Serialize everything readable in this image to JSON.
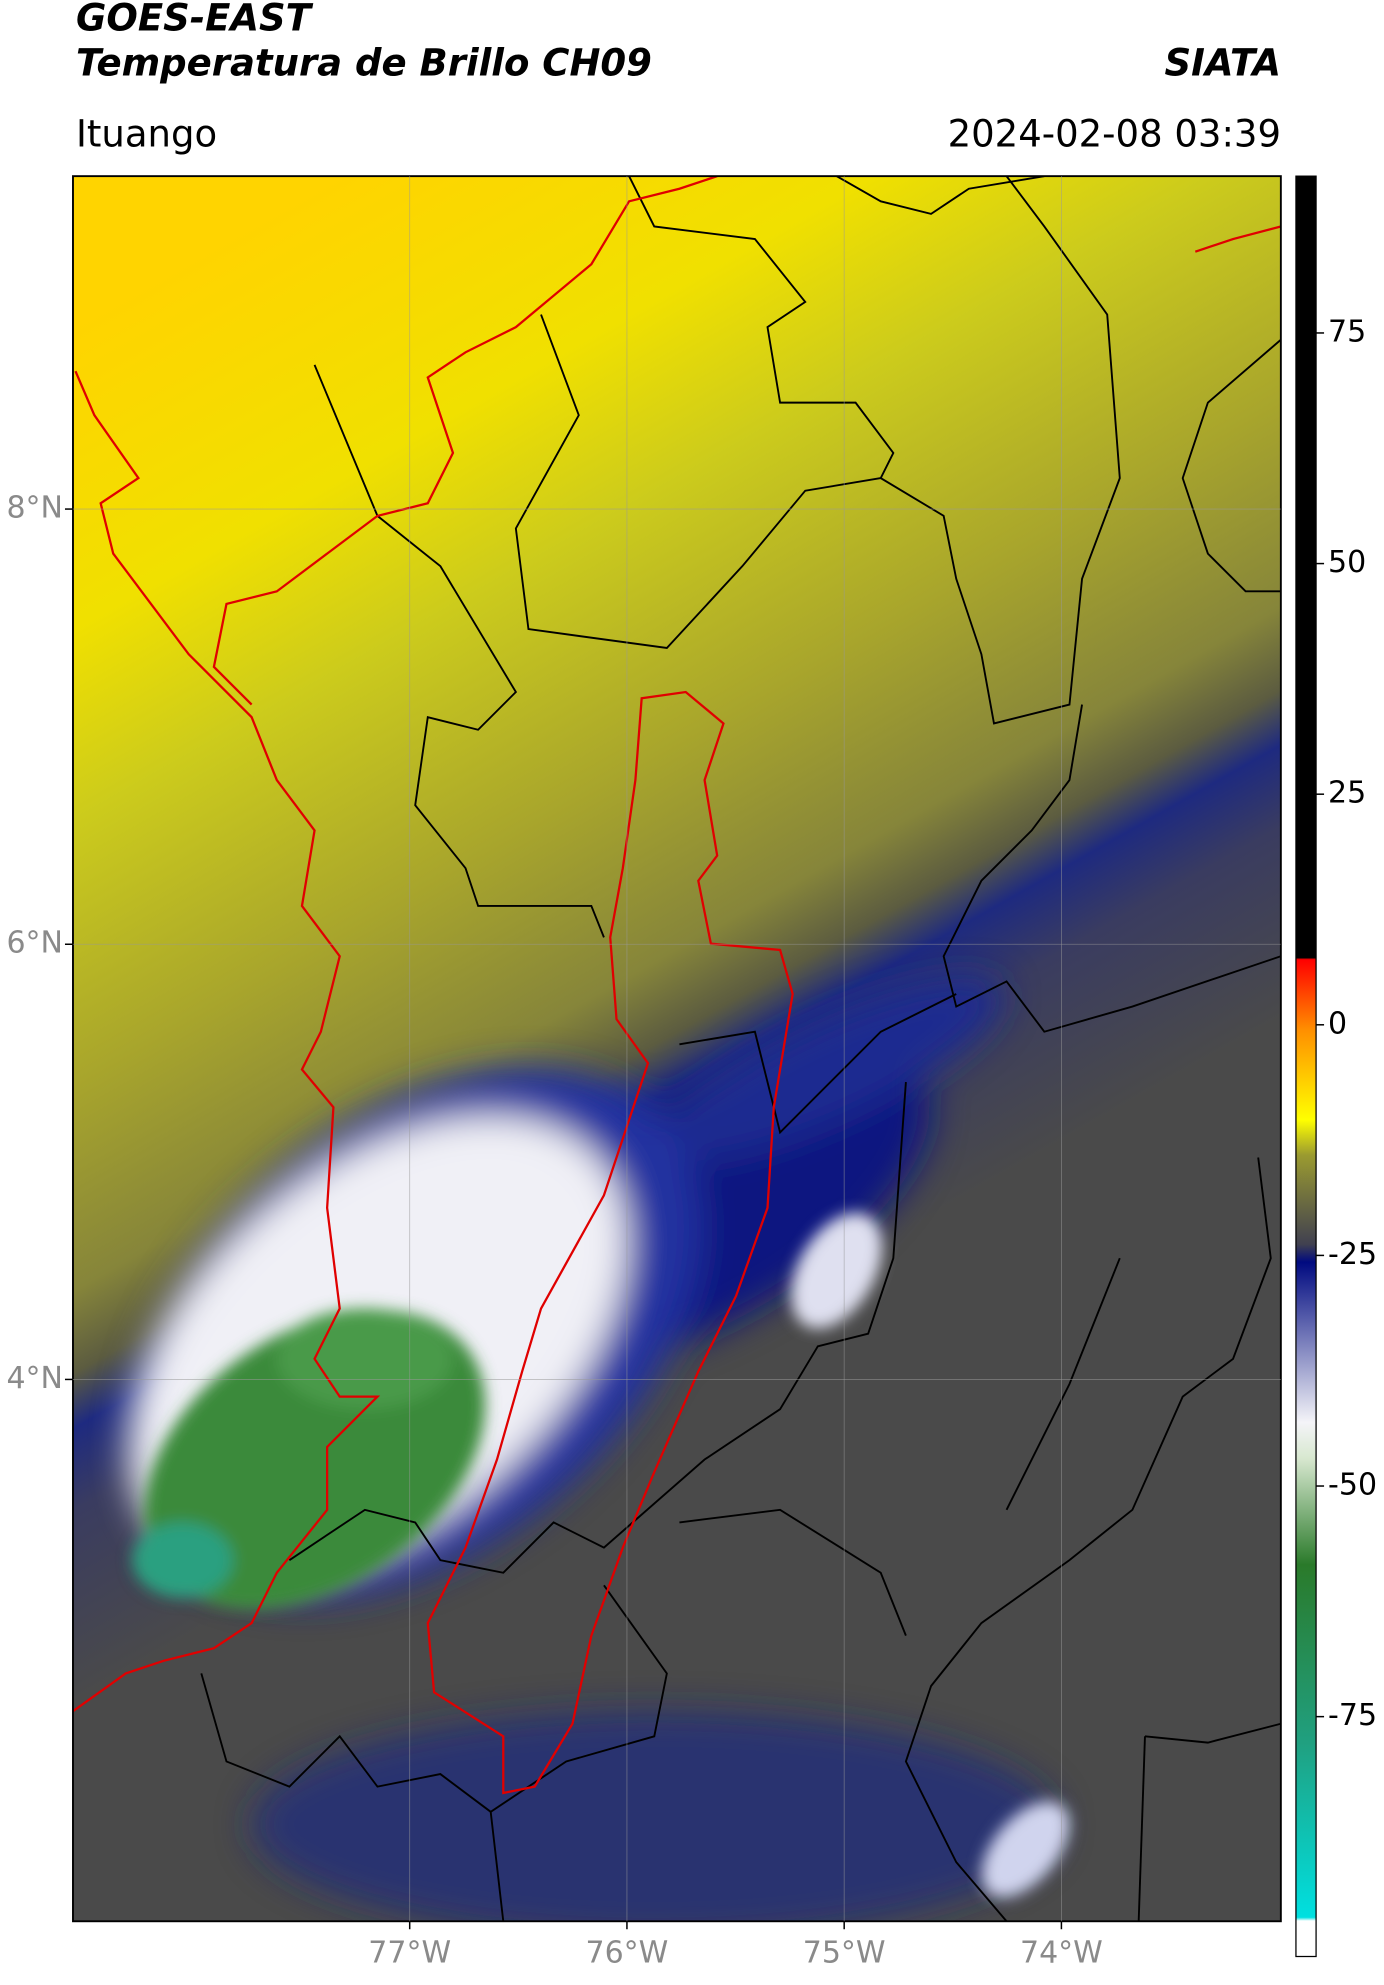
{
  "header": {
    "title": "GOES-EAST",
    "subtitle": "Temperatura de Brillo CH09",
    "source": "SIATA",
    "region": "Ituango",
    "datetime": "2024-02-08 03:39"
  },
  "map": {
    "lonlim": [
      -78.55,
      -72.99
    ],
    "latlim": [
      1.51,
      9.53
    ],
    "lat_ticks": [
      {
        "value": 8,
        "label": "8°N"
      },
      {
        "value": 6,
        "label": "6°N"
      },
      {
        "value": 4,
        "label": "4°N"
      }
    ],
    "lon_ticks": [
      {
        "value": -77,
        "label": "77°W"
      },
      {
        "value": -76,
        "label": "76°W"
      },
      {
        "value": -75,
        "label": "75°W"
      },
      {
        "value": -74,
        "label": "74°W"
      }
    ],
    "grid": true
  },
  "colorbar": {
    "lim": [
      -101,
      92
    ],
    "ticks": [
      75,
      50,
      25,
      0,
      -25,
      -50,
      -75
    ]
  }
}
